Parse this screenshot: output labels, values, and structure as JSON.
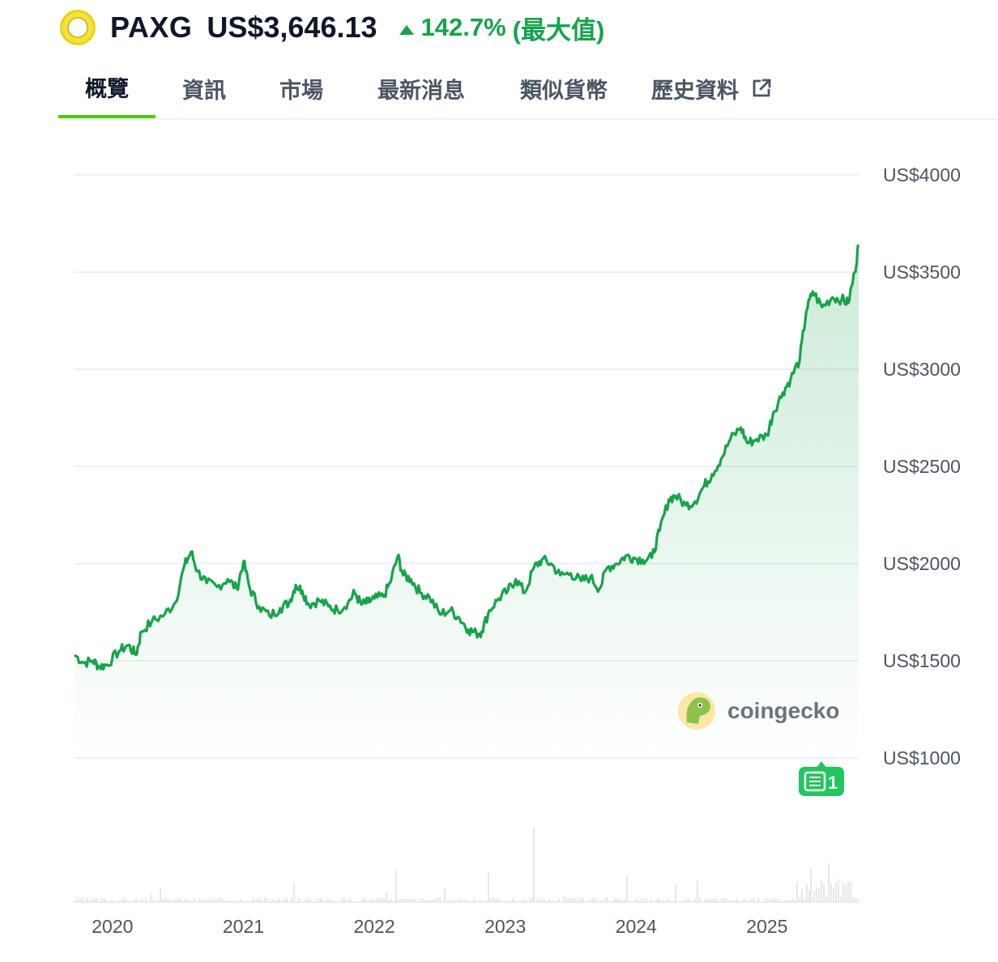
{
  "header": {
    "symbol": "PAXG",
    "price": "US$3,646.13",
    "change": "142.7%",
    "change_suffix": "(最大值)",
    "change_color": "#16a34a",
    "logo_icon": "paxg-gold-ring-icon"
  },
  "tabs": [
    {
      "label": "概覽",
      "active": true
    },
    {
      "label": "資訊"
    },
    {
      "label": "市場"
    },
    {
      "label": "最新消息"
    },
    {
      "label": "類似貨幣"
    },
    {
      "label": "歷史資料",
      "icon": "external-link-icon"
    }
  ],
  "watermark": {
    "text": "coingecko",
    "icon": "coingecko-gecko-icon"
  },
  "news_badge": {
    "icon": "newspaper-icon",
    "count": "1"
  },
  "chart_data": {
    "type": "area",
    "line_color": "#16a34a",
    "fill_color": "#16a34a",
    "grid": true,
    "y_axis_position": "right",
    "ylim": [
      1000,
      4000
    ],
    "y_ticks": [
      {
        "value": 4000,
        "label": "US$4000"
      },
      {
        "value": 3500,
        "label": "US$3500"
      },
      {
        "value": 3000,
        "label": "US$3000"
      },
      {
        "value": 2500,
        "label": "US$2500"
      },
      {
        "value": 2000,
        "label": "US$2000"
      },
      {
        "value": 1500,
        "label": "US$1500"
      },
      {
        "value": 1000,
        "label": "US$1000"
      }
    ],
    "xlim": [
      2019.71,
      2025.7
    ],
    "x_ticks": [
      {
        "value": 2020,
        "label": "2020"
      },
      {
        "value": 2021,
        "label": "2021"
      },
      {
        "value": 2022,
        "label": "2022"
      },
      {
        "value": 2023,
        "label": "2023"
      },
      {
        "value": 2024,
        "label": "2024"
      },
      {
        "value": 2025,
        "label": "2025"
      }
    ],
    "series": [
      {
        "points": [
          [
            2019.71,
            1530
          ],
          [
            2019.78,
            1490
          ],
          [
            2019.85,
            1500
          ],
          [
            2019.9,
            1470
          ],
          [
            2019.96,
            1480
          ],
          [
            2020.05,
            1550
          ],
          [
            2020.12,
            1580
          ],
          [
            2020.18,
            1530
          ],
          [
            2020.22,
            1650
          ],
          [
            2020.3,
            1700
          ],
          [
            2020.4,
            1740
          ],
          [
            2020.48,
            1800
          ],
          [
            2020.55,
            1990
          ],
          [
            2020.6,
            2060
          ],
          [
            2020.65,
            1960
          ],
          [
            2020.72,
            1900
          ],
          [
            2020.8,
            1880
          ],
          [
            2020.88,
            1920
          ],
          [
            2020.95,
            1870
          ],
          [
            2021.0,
            2010
          ],
          [
            2021.05,
            1870
          ],
          [
            2021.12,
            1780
          ],
          [
            2021.2,
            1730
          ],
          [
            2021.28,
            1770
          ],
          [
            2021.35,
            1800
          ],
          [
            2021.4,
            1890
          ],
          [
            2021.45,
            1860
          ],
          [
            2021.5,
            1790
          ],
          [
            2021.58,
            1810
          ],
          [
            2021.65,
            1780
          ],
          [
            2021.72,
            1760
          ],
          [
            2021.8,
            1800
          ],
          [
            2021.85,
            1850
          ],
          [
            2021.9,
            1790
          ],
          [
            2021.95,
            1800
          ],
          [
            2022.0,
            1820
          ],
          [
            2022.07,
            1830
          ],
          [
            2022.12,
            1900
          ],
          [
            2022.18,
            2040
          ],
          [
            2022.22,
            1940
          ],
          [
            2022.28,
            1920
          ],
          [
            2022.35,
            1850
          ],
          [
            2022.42,
            1830
          ],
          [
            2022.5,
            1740
          ],
          [
            2022.58,
            1760
          ],
          [
            2022.65,
            1720
          ],
          [
            2022.72,
            1660
          ],
          [
            2022.78,
            1640
          ],
          [
            2022.82,
            1650
          ],
          [
            2022.88,
            1760
          ],
          [
            2022.95,
            1820
          ],
          [
            2023.02,
            1860
          ],
          [
            2023.08,
            1920
          ],
          [
            2023.15,
            1850
          ],
          [
            2023.22,
            1980
          ],
          [
            2023.28,
            2020
          ],
          [
            2023.35,
            2000
          ],
          [
            2023.42,
            1940
          ],
          [
            2023.5,
            1950
          ],
          [
            2023.58,
            1910
          ],
          [
            2023.65,
            1930
          ],
          [
            2023.72,
            1870
          ],
          [
            2023.78,
            1980
          ],
          [
            2023.85,
            2000
          ],
          [
            2023.92,
            2040
          ],
          [
            2023.98,
            2030
          ],
          [
            2024.05,
            2020
          ],
          [
            2024.12,
            2030
          ],
          [
            2024.18,
            2170
          ],
          [
            2024.25,
            2330
          ],
          [
            2024.3,
            2350
          ],
          [
            2024.38,
            2300
          ],
          [
            2024.45,
            2320
          ],
          [
            2024.52,
            2400
          ],
          [
            2024.58,
            2460
          ],
          [
            2024.65,
            2540
          ],
          [
            2024.72,
            2640
          ],
          [
            2024.8,
            2700
          ],
          [
            2024.85,
            2620
          ],
          [
            2024.92,
            2640
          ],
          [
            2025.0,
            2660
          ],
          [
            2025.05,
            2780
          ],
          [
            2025.12,
            2880
          ],
          [
            2025.18,
            2950
          ],
          [
            2025.25,
            3050
          ],
          [
            2025.3,
            3300
          ],
          [
            2025.35,
            3400
          ],
          [
            2025.42,
            3320
          ],
          [
            2025.5,
            3370
          ],
          [
            2025.57,
            3360
          ],
          [
            2025.62,
            3340
          ],
          [
            2025.67,
            3500
          ],
          [
            2025.7,
            3640
          ]
        ]
      }
    ]
  }
}
